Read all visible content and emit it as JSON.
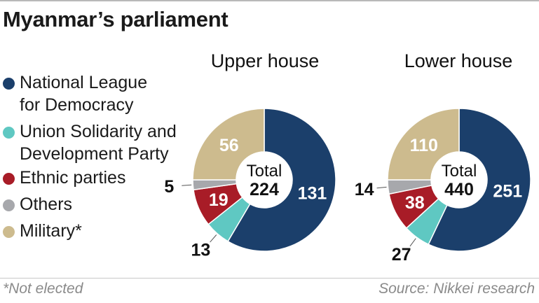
{
  "title": "Myanmar’s parliament",
  "legend": [
    {
      "label": "National League\nfor Democracy",
      "color": "#1b3f6b"
    },
    {
      "label": "Union Solidarity and\nDevelopment Party",
      "color": "#5fc8c2"
    },
    {
      "label": "Ethnic parties",
      "color": "#a81c27"
    },
    {
      "label": "Others",
      "color": "#a7a8ac"
    },
    {
      "label": "Military*",
      "color": "#cdbb8e"
    }
  ],
  "chart_data": [
    {
      "type": "pie",
      "title": "Upper house",
      "center_label": "Total",
      "total": 224,
      "categories": [
        "National League for Democracy",
        "Union Solidarity and Development Party",
        "Ethnic parties",
        "Others",
        "Military*"
      ],
      "values": [
        131,
        13,
        19,
        5,
        56
      ],
      "colors": [
        "#1b3f6b",
        "#5fc8c2",
        "#a81c27",
        "#a7a8ac",
        "#cdbb8e"
      ]
    },
    {
      "type": "pie",
      "title": "Lower house",
      "center_label": "Total",
      "total": 440,
      "categories": [
        "National League for Democracy",
        "Union Solidarity and Development Party",
        "Ethnic parties",
        "Others",
        "Military*"
      ],
      "values": [
        251,
        27,
        38,
        14,
        110
      ],
      "colors": [
        "#1b3f6b",
        "#5fc8c2",
        "#a81c27",
        "#a7a8ac",
        "#cdbb8e"
      ]
    }
  ],
  "footnote": "*Not elected",
  "source": "Source: Nikkei research"
}
